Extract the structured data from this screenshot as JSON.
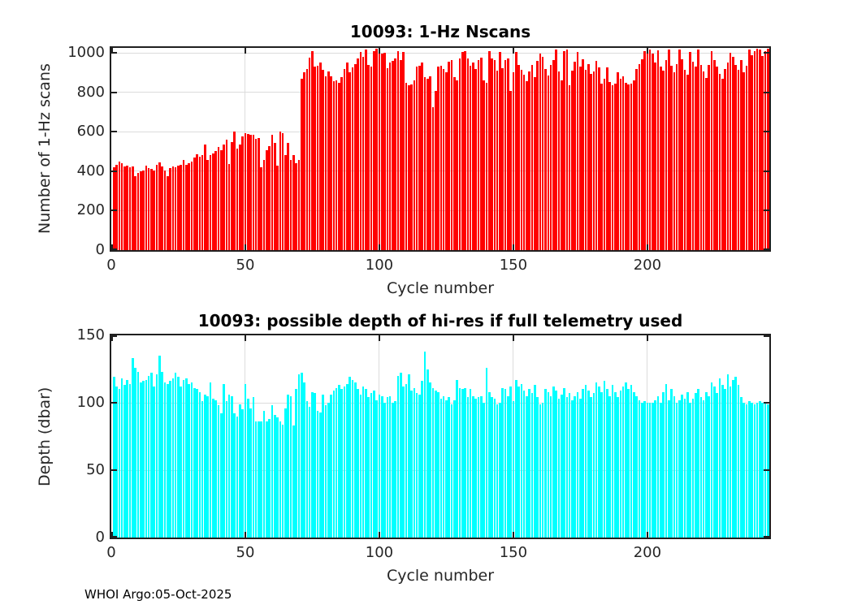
{
  "figure": {
    "footer": "WHOI Argo:05-Oct-2025"
  },
  "chart_data": [
    {
      "type": "bar",
      "title": "10093: 1-Hz Nscans",
      "xlabel": "Cycle number",
      "ylabel": "Number of 1-Hz scans",
      "bar_color": "#ff0000",
      "grid": true,
      "legend": "none",
      "xlim": [
        0,
        245.5
      ],
      "ylim": [
        0,
        1025
      ],
      "xticks": [
        0,
        50,
        100,
        150,
        200
      ],
      "yticks": [
        0,
        200,
        400,
        600,
        800,
        1000
      ],
      "x_start_cycle": 1,
      "values": [
        418,
        434,
        450,
        441,
        425,
        430,
        420,
        425,
        376,
        391,
        398,
        403,
        427,
        414,
        410,
        403,
        434,
        444,
        425,
        403,
        373,
        417,
        425,
        420,
        430,
        434,
        455,
        434,
        441,
        450,
        468,
        484,
        475,
        482,
        536,
        459,
        482,
        489,
        502,
        522,
        506,
        536,
        559,
        438,
        547,
        601,
        516,
        536,
        577,
        594,
        590,
        583,
        583,
        563,
        570,
        418,
        455,
        506,
        529,
        583,
        543,
        430,
        601,
        594,
        482,
        543,
        459,
        482,
        441,
        459,
        868,
        900,
        920,
        975,
        1010,
        930,
        935,
        950,
        915,
        880,
        905,
        879,
        855,
        862,
        848,
        875,
        916,
        950,
        902,
        925,
        943,
        970,
        1005,
        980,
        1015,
        940,
        930,
        1010,
        1020,
        1015,
        995,
        1000,
        923,
        950,
        960,
        970,
        1010,
        963,
        1004,
        848,
        834,
        841,
        862,
        929,
        936,
        950,
        875,
        868,
        882,
        726,
        807,
        929,
        936,
        916,
        902,
        957,
        963,
        875,
        862,
        973,
        1004,
        1010,
        970,
        936,
        950,
        916,
        963,
        977,
        862,
        848,
        1010,
        970,
        963,
        909,
        1004,
        923,
        963,
        970,
        807,
        902,
        1005,
        938,
        912,
        890,
        857,
        905,
        938,
        878,
        958,
        998,
        978,
        920,
        884,
        940,
        962,
        1015,
        905,
        860,
        1010,
        1018,
        837,
        911,
        955,
        1005,
        930,
        968,
        912,
        942,
        895,
        905,
        960,
        925,
        843,
        870,
        925,
        852,
        836,
        845,
        900,
        870,
        880,
        848,
        838,
        842,
        860,
        920,
        942,
        968,
        1010,
        1018,
        1015,
        995,
        950,
        1012,
        930,
        910,
        965,
        1018,
        935,
        900,
        942,
        1015,
        968,
        912,
        890,
        1005,
        955,
        930,
        1018,
        940,
        905,
        872,
        938,
        1010,
        962,
        930,
        892,
        868,
        918,
        950,
        1002,
        978,
        940,
        912,
        965,
        900,
        935,
        1015,
        990,
        1010,
        1020,
        1015,
        985,
        1010,
        1020
      ]
    },
    {
      "type": "bar",
      "title": "10093: possible depth of hi-res if full telemetry used",
      "xlabel": "Cycle number",
      "ylabel": "Depth (dbar)",
      "bar_color": "#00ffff",
      "grid": true,
      "legend": "none",
      "xlim": [
        0,
        245.5
      ],
      "ylim": [
        0,
        150
      ],
      "xticks": [
        0,
        50,
        100,
        150,
        200
      ],
      "yticks": [
        0,
        50,
        100,
        150
      ],
      "x_start_cycle": 1,
      "values": [
        119,
        112,
        110,
        118,
        113,
        117,
        114,
        133,
        126,
        123,
        115,
        116,
        117,
        120,
        122,
        112,
        121,
        135,
        123,
        115,
        114,
        116,
        118,
        122,
        119,
        112,
        117,
        118,
        114,
        115,
        111,
        110,
        108,
        101,
        106,
        105,
        115,
        103,
        102,
        98,
        92,
        114,
        101,
        106,
        105,
        92,
        90,
        99,
        95,
        114,
        103,
        96,
        104,
        86,
        86,
        86,
        94,
        86,
        88,
        98,
        91,
        89,
        86,
        84,
        96,
        106,
        105,
        83,
        110,
        121,
        122,
        115,
        101,
        97,
        108,
        107,
        94,
        93,
        106,
        98,
        100,
        106,
        109,
        111,
        113,
        110,
        112,
        114,
        119,
        117,
        115,
        110,
        106,
        112,
        110,
        104,
        107,
        109,
        102,
        106,
        105,
        100,
        104,
        105,
        100,
        101,
        120,
        122,
        112,
        114,
        121,
        109,
        111,
        107,
        106,
        116,
        138,
        125,
        115,
        111,
        109,
        108,
        103,
        105,
        102,
        104,
        99,
        102,
        117,
        111,
        110,
        111,
        104,
        110,
        105,
        103,
        104,
        105,
        100,
        126,
        108,
        104,
        103,
        99,
        100,
        111,
        110,
        105,
        112,
        101,
        117,
        112,
        114,
        109,
        105,
        110,
        107,
        113,
        104,
        99,
        100,
        110,
        108,
        105,
        112,
        109,
        103,
        106,
        111,
        104,
        107,
        102,
        105,
        108,
        103,
        110,
        113,
        109,
        104,
        107,
        115,
        112,
        108,
        116,
        110,
        105,
        113,
        108,
        104,
        109,
        112,
        115,
        110,
        113,
        108,
        105,
        102,
        100,
        101,
        100,
        100,
        100,
        102,
        105,
        100,
        108,
        114,
        102,
        110,
        105,
        100,
        102,
        106,
        103,
        108,
        100,
        103,
        107,
        110,
        104,
        102,
        108,
        105,
        115,
        112,
        107,
        118,
        113,
        110,
        121,
        112,
        117,
        119,
        113,
        104,
        100,
        99,
        101,
        100,
        99,
        100,
        101,
        100,
        100,
        99
      ]
    }
  ]
}
